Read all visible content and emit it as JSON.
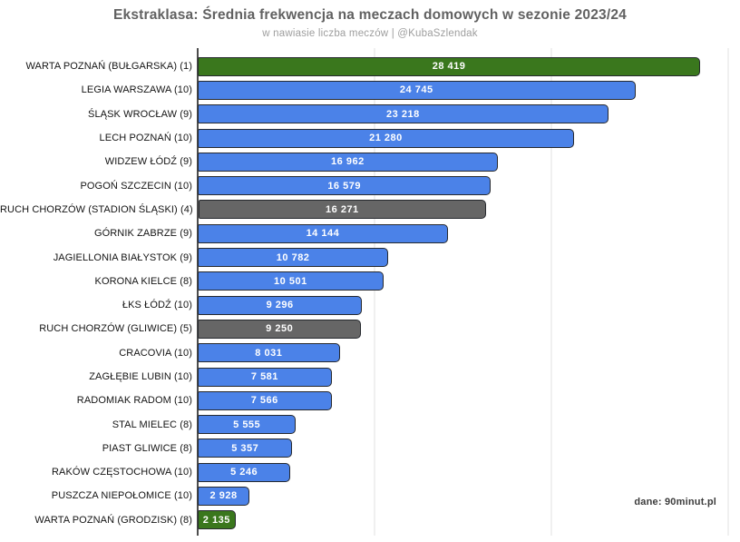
{
  "header": {
    "title": "Ekstraklasa: Średnia frekwencja na meczach domowych w sezonie 2023/24",
    "subtitle": "w nawiasie liczba meczów | @KubaSzlendak"
  },
  "source_note": "dane: 90minut.pl",
  "colors": {
    "blue": "#4b82e8",
    "green": "#3a771d",
    "gray": "#666666",
    "bar_border": "#26292e",
    "axis_line": "#4d4d4d",
    "gridline": "#e0e0e0",
    "title_text": "#616161",
    "subtitle_text": "#9e9e9e",
    "label_text": "#141414",
    "value_text": "#ffffff"
  },
  "chart_data": {
    "type": "bar",
    "orientation": "horizontal",
    "title": "Ekstraklasa: Średnia frekwencja na meczach domowych w sezonie 2023/24",
    "subtitle": "w nawiasie liczba meczów | @KubaSzlendak",
    "xlabel": "",
    "ylabel": "",
    "xlim": [
      0,
      30000
    ],
    "gridlines_x": [
      0,
      10000,
      20000,
      30000
    ],
    "grid": true,
    "legend": "none",
    "value_label_position": "inside-center",
    "bars": [
      {
        "label": "WARTA POZNAŃ (BUŁGARSKA) (1)",
        "value": 28419,
        "value_label": "28 419",
        "color": "green"
      },
      {
        "label": "LEGIA WARSZAWA (10)",
        "value": 24745,
        "value_label": "24 745",
        "color": "blue"
      },
      {
        "label": "ŚLĄSK WROCŁAW (9)",
        "value": 23218,
        "value_label": "23 218",
        "color": "blue"
      },
      {
        "label": "LECH POZNAŃ (10)",
        "value": 21280,
        "value_label": "21 280",
        "color": "blue"
      },
      {
        "label": "WIDZEW ŁÓDŹ (9)",
        "value": 16962,
        "value_label": "16 962",
        "color": "blue"
      },
      {
        "label": "POGOŃ SZCZECIN (10)",
        "value": 16579,
        "value_label": "16 579",
        "color": "blue"
      },
      {
        "label": "RUCH CHORZÓW (STADION ŚLĄSKI) (4)",
        "value": 16271,
        "value_label": "16 271",
        "color": "gray"
      },
      {
        "label": "GÓRNIK ZABRZE (9)",
        "value": 14144,
        "value_label": "14 144",
        "color": "blue"
      },
      {
        "label": "JAGIELLONIA BIAŁYSTOK (9)",
        "value": 10782,
        "value_label": "10 782",
        "color": "blue"
      },
      {
        "label": "KORONA KIELCE (8)",
        "value": 10501,
        "value_label": "10 501",
        "color": "blue"
      },
      {
        "label": "ŁKS ŁÓDŹ (10)",
        "value": 9296,
        "value_label": "9 296",
        "color": "blue"
      },
      {
        "label": "RUCH CHORZÓW (GLIWICE) (5)",
        "value": 9250,
        "value_label": "9 250",
        "color": "gray"
      },
      {
        "label": "CRACOVIA (10)",
        "value": 8031,
        "value_label": "8 031",
        "color": "blue"
      },
      {
        "label": "ZAGŁĘBIE LUBIN (10)",
        "value": 7581,
        "value_label": "7 581",
        "color": "blue"
      },
      {
        "label": "RADOMIAK RADOM (10)",
        "value": 7566,
        "value_label": "7 566",
        "color": "blue"
      },
      {
        "label": "STAL MIELEC (8)",
        "value": 5555,
        "value_label": "5 555",
        "color": "blue"
      },
      {
        "label": "PIAST GLIWICE (8)",
        "value": 5357,
        "value_label": "5 357",
        "color": "blue"
      },
      {
        "label": "RAKÓW CZĘSTOCHOWA (10)",
        "value": 5246,
        "value_label": "5 246",
        "color": "blue"
      },
      {
        "label": "PUSZCZA NIEPOŁOMICE (10)",
        "value": 2928,
        "value_label": "2 928",
        "color": "blue"
      },
      {
        "label": "WARTA POZNAŃ (GRODZISK) (8)",
        "value": 2135,
        "value_label": "2 135",
        "color": "green"
      }
    ]
  }
}
